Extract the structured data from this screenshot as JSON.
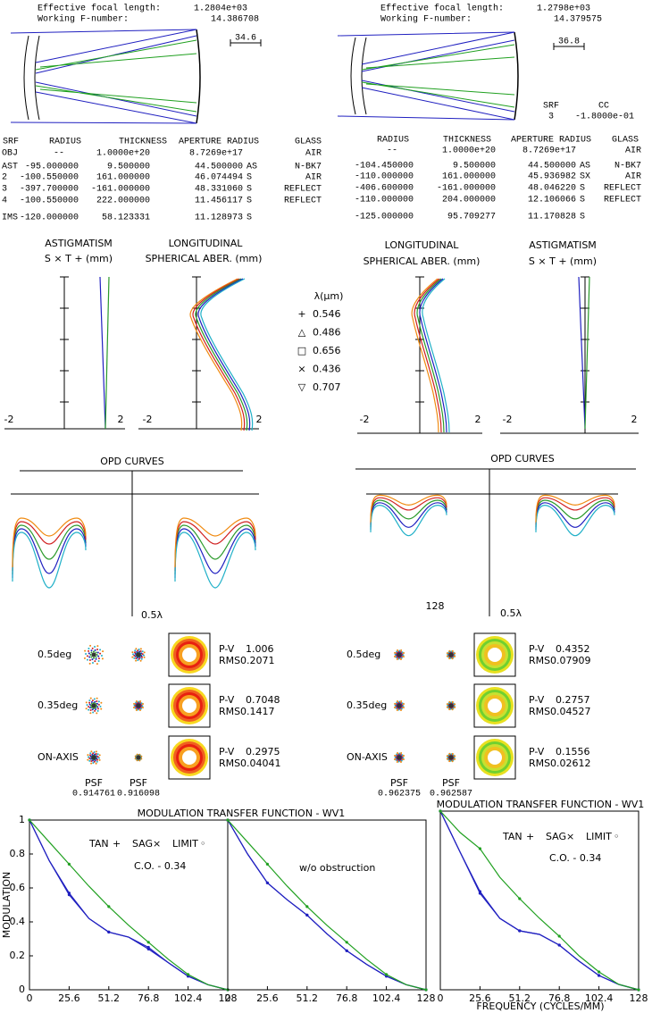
{
  "left_design": {
    "efl_label": "Effective focal length:",
    "efl": "1.2804e+03",
    "wfn_label": "Working F-number:",
    "wfn": "14.386708",
    "scale": "34.6"
  },
  "right_design": {
    "efl_label": "Effective focal length:",
    "efl": "1.2798e+03",
    "wfn_label": "Working F-number:",
    "wfn": "14.379575",
    "scale": "36.8",
    "srf_label": "SRF",
    "cc_label": "CC",
    "srf": "3",
    "cc": "-1.8000e-01"
  },
  "left_table": {
    "header": [
      "SRF",
      "RADIUS",
      "THICKNESS",
      "APERTURE RADIUS",
      "GLASS"
    ],
    "rows": [
      {
        "srf": "OBJ",
        "radius": "--",
        "thickness": "1.0000e+20",
        "aperture": "8.7269e+17",
        "glass": "AIR"
      },
      {
        "srf": "AST",
        "radius": "-95.000000",
        "thickness": "9.500000",
        "aperture": "44.500000",
        "flag": "AS",
        "glass": "N-BK7"
      },
      {
        "srf": "2",
        "radius": "-100.550000",
        "thickness": "161.000000",
        "aperture": "46.074494",
        "flag": "S",
        "glass": "AIR"
      },
      {
        "srf": "3",
        "radius": "-397.700000",
        "thickness": "-161.000000",
        "aperture": "48.331060",
        "flag": "S",
        "glass": "REFLECT"
      },
      {
        "srf": "4",
        "radius": "-100.550000",
        "thickness": "222.000000",
        "aperture": "11.456117",
        "flag": "S",
        "glass": "REFLECT"
      },
      {
        "srf": "IMS",
        "radius": "-120.000000",
        "thickness": "58.123331",
        "aperture": "11.128973",
        "flag": "S"
      }
    ]
  },
  "right_table": {
    "header": [
      "RADIUS",
      "THICKNESS",
      "APERTURE RADIUS",
      "GLASS"
    ],
    "rows": [
      {
        "radius": "--",
        "thickness": "1.0000e+20",
        "aperture": "8.7269e+17",
        "glass": "AIR"
      },
      {
        "radius": "-104.450000",
        "thickness": "9.500000",
        "aperture": "44.500000",
        "flag": "AS",
        "glass": "N-BK7"
      },
      {
        "radius": "-110.000000",
        "thickness": "161.000000",
        "aperture": "45.936982",
        "flag": "SX",
        "glass": "AIR"
      },
      {
        "radius": "-406.600000",
        "thickness": "-161.000000",
        "aperture": "48.046220",
        "flag": "S",
        "glass": "REFLECT"
      },
      {
        "radius": "-110.000000",
        "thickness": "204.000000",
        "aperture": "12.106066",
        "flag": "S",
        "glass": "REFLECT"
      },
      {
        "radius": "-125.000000",
        "thickness": "95.709277",
        "aperture": "11.170828",
        "flag": "S"
      }
    ]
  },
  "aberrations": {
    "astig_title": "ASTIGMATISM",
    "astig_sub": "S × T + (mm)",
    "sph_title": "LONGITUDINAL",
    "sph_sub": "SPHERICAL ABER. (mm)",
    "axis_min": "-2",
    "axis_max": "2",
    "legend_title": "λ(μm)",
    "wavelengths": [
      {
        "label": "0.546",
        "symbol": "+",
        "color": "#2a9a2a"
      },
      {
        "label": "0.486",
        "symbol": "△",
        "color": "#2020c0"
      },
      {
        "label": "0.656",
        "symbol": "□",
        "color": "#d02020"
      },
      {
        "label": "0.436",
        "symbol": "×",
        "color": "#20b0c8"
      },
      {
        "label": "0.707",
        "symbol": "▽",
        "color": "#f08a10"
      }
    ]
  },
  "opd": {
    "title": "OPD CURVES",
    "scale": "0.5λ",
    "stray": "128"
  },
  "left_spots": {
    "fields": [
      {
        "label": "0.5deg",
        "pv": "1.006",
        "rms": "0.2071"
      },
      {
        "label": "0.35deg",
        "pv": "0.7048",
        "rms": "0.1417"
      },
      {
        "label": "ON-AXIS",
        "pv": "0.2975",
        "rms": "0.04041"
      }
    ],
    "pv_label": "P-V",
    "rms_label": "RMS",
    "psf_label": "PSF",
    "psf": [
      "0.914761",
      "0.916098"
    ]
  },
  "right_spots": {
    "fields": [
      {
        "label": "0.5deg",
        "pv": "0.4352",
        "rms": "0.07909"
      },
      {
        "label": "0.35deg",
        "pv": "0.2757",
        "rms": "0.04527"
      },
      {
        "label": "ON-AXIS",
        "pv": "0.1556",
        "rms": "0.02612"
      }
    ],
    "pv_label": "P-V",
    "rms_label": "RMS",
    "psf_label": "PSF",
    "psf": [
      "0.962375",
      "0.962587"
    ]
  },
  "chart_data": [
    {
      "type": "line",
      "title": "MODULATION TRANSFER FUNCTION - WV1",
      "y_label": "MODULATION",
      "annotation": "C.O. - 0.34",
      "x": [
        0,
        12.8,
        25.6,
        38.4,
        51.2,
        64,
        76.8,
        89.6,
        102.4,
        115.2,
        128
      ],
      "xlim": [
        0,
        128
      ],
      "ylim": [
        0,
        1
      ],
      "xticks": [
        0,
        25.6,
        51.2,
        76.8,
        102.4,
        128
      ],
      "yticks": [
        0,
        0.2,
        0.4,
        0.6,
        0.8,
        1
      ],
      "series": [
        {
          "name": "TAN",
          "symbol": "+",
          "color": "#2020c0",
          "values": [
            1,
            0.76,
            0.57,
            0.42,
            0.34,
            0.31,
            0.25,
            0.16,
            0.08,
            0.03,
            0
          ]
        },
        {
          "name": "SAG",
          "symbol": "×",
          "color": "#2020c0",
          "values": [
            1,
            0.76,
            0.56,
            0.42,
            0.34,
            0.31,
            0.24,
            0.16,
            0.08,
            0.03,
            0
          ]
        },
        {
          "name": "LIMIT",
          "symbol": "◦",
          "color": "#20a020",
          "values": [
            1,
            0.87,
            0.74,
            0.61,
            0.49,
            0.38,
            0.28,
            0.18,
            0.09,
            0.03,
            0
          ]
        }
      ]
    },
    {
      "type": "line",
      "annotation": "w/o obstruction",
      "x": [
        0,
        12.8,
        25.6,
        38.4,
        51.2,
        64,
        76.8,
        89.6,
        102.4,
        115.2,
        128
      ],
      "xlim": [
        0,
        128
      ],
      "ylim": [
        0,
        1
      ],
      "xticks": [
        0,
        25.6,
        51.2,
        76.8,
        102.4,
        128
      ],
      "series": [
        {
          "color": "#2020c0",
          "values": [
            1,
            0.8,
            0.63,
            0.53,
            0.44,
            0.33,
            0.23,
            0.15,
            0.08,
            0.03,
            0
          ]
        },
        {
          "color": "#2020c0",
          "values": [
            1,
            0.8,
            0.63,
            0.53,
            0.44,
            0.33,
            0.23,
            0.15,
            0.08,
            0.03,
            0
          ]
        },
        {
          "color": "#20a020",
          "values": [
            1,
            0.87,
            0.74,
            0.61,
            0.49,
            0.38,
            0.28,
            0.18,
            0.09,
            0.03,
            0
          ]
        }
      ]
    },
    {
      "type": "line",
      "title": "MODULATION TRANSFER FUNCTION - WV1",
      "x_label": "FREQUENCY (CYCLES/MM)",
      "annotation": "C.O. - 0.34",
      "x": [
        0,
        12.8,
        25.6,
        38.4,
        51.2,
        64,
        76.8,
        89.6,
        102.4,
        115.2,
        128
      ],
      "xlim": [
        0,
        128
      ],
      "ylim": [
        0,
        1
      ],
      "xticks": [
        0,
        25.6,
        51.2,
        76.8,
        102.4,
        128
      ],
      "series": [
        {
          "name": "TAN",
          "symbol": "+",
          "color": "#2020c0",
          "values": [
            1,
            0.77,
            0.55,
            0.4,
            0.33,
            0.31,
            0.25,
            0.16,
            0.08,
            0.03,
            0
          ]
        },
        {
          "name": "SAG",
          "symbol": "×",
          "color": "#2020c0",
          "values": [
            1,
            0.77,
            0.54,
            0.4,
            0.33,
            0.31,
            0.25,
            0.16,
            0.08,
            0.03,
            0
          ]
        },
        {
          "name": "LIMIT",
          "symbol": "◦",
          "color": "#20a020",
          "values": [
            1,
            0.88,
            0.79,
            0.63,
            0.51,
            0.4,
            0.3,
            0.19,
            0.1,
            0.03,
            0
          ]
        }
      ]
    }
  ]
}
